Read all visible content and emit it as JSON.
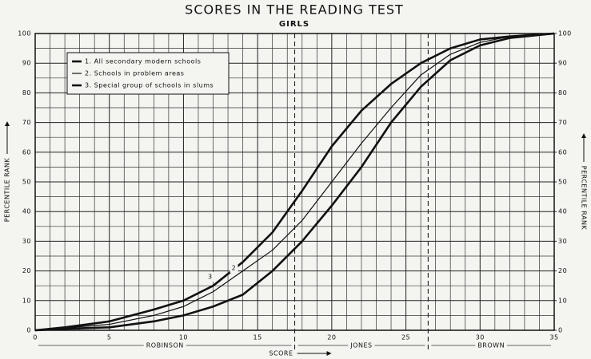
{
  "chart_data": {
    "type": "line",
    "title": "SCORES IN THE READING TEST",
    "subtitle": "GIRLS",
    "xlabel": "SCORE",
    "ylabel": "PERCENTILE RANK",
    "y2label": "PERCENTILE RANK",
    "x": [
      0,
      2,
      5,
      8,
      10,
      12,
      14,
      16,
      18,
      20,
      22,
      24,
      26,
      28,
      30,
      32,
      35
    ],
    "series": [
      {
        "name": "1.  All secondary modern schools",
        "color": "#111111",
        "width": 2.6,
        "values": [
          0,
          0.5,
          1,
          3,
          5,
          8,
          12,
          20,
          30,
          42,
          55,
          70,
          82,
          91,
          96,
          98.5,
          100
        ]
      },
      {
        "name": "2.  Schools in problem areas",
        "color": "#111111",
        "width": 1.2,
        "label": "2",
        "values": [
          0,
          0.8,
          2,
          5,
          8,
          13,
          20,
          27,
          37,
          50,
          63,
          75,
          86,
          93,
          97,
          99,
          100
        ]
      },
      {
        "name": "3.  Special group of schools in slums",
        "color": "#111111",
        "width": 2.6,
        "label": "3",
        "values": [
          0,
          1,
          3,
          7,
          10,
          15,
          23,
          33,
          47,
          62,
          74,
          83,
          90,
          95,
          98,
          99,
          100
        ]
      }
    ],
    "xlim": [
      0,
      35
    ],
    "xticks": [
      0,
      5,
      10,
      15,
      20,
      25,
      30,
      35
    ],
    "x_minor_ticks": [
      1,
      2,
      3,
      4,
      6,
      7,
      8,
      9,
      11,
      12,
      13,
      14,
      16,
      17,
      18,
      19,
      21,
      22,
      23,
      24,
      26,
      27,
      28,
      29,
      31,
      32,
      33,
      34
    ],
    "ylim": [
      0,
      100
    ],
    "yticks": [
      0,
      10,
      20,
      30,
      40,
      50,
      60,
      70,
      80,
      90,
      100
    ],
    "y_minor_ticks": [
      5,
      15,
      25,
      35,
      45,
      55,
      65,
      75,
      85,
      95
    ],
    "y2lim": [
      0,
      100
    ],
    "y2ticks": [
      0,
      10,
      20,
      30,
      40,
      50,
      60,
      70,
      80,
      90,
      100
    ],
    "vlines": [
      17.5,
      26.5
    ],
    "regions": [
      "ROBINSON",
      "JONES",
      "BROWN"
    ],
    "grid": true,
    "legend": "upper left"
  }
}
